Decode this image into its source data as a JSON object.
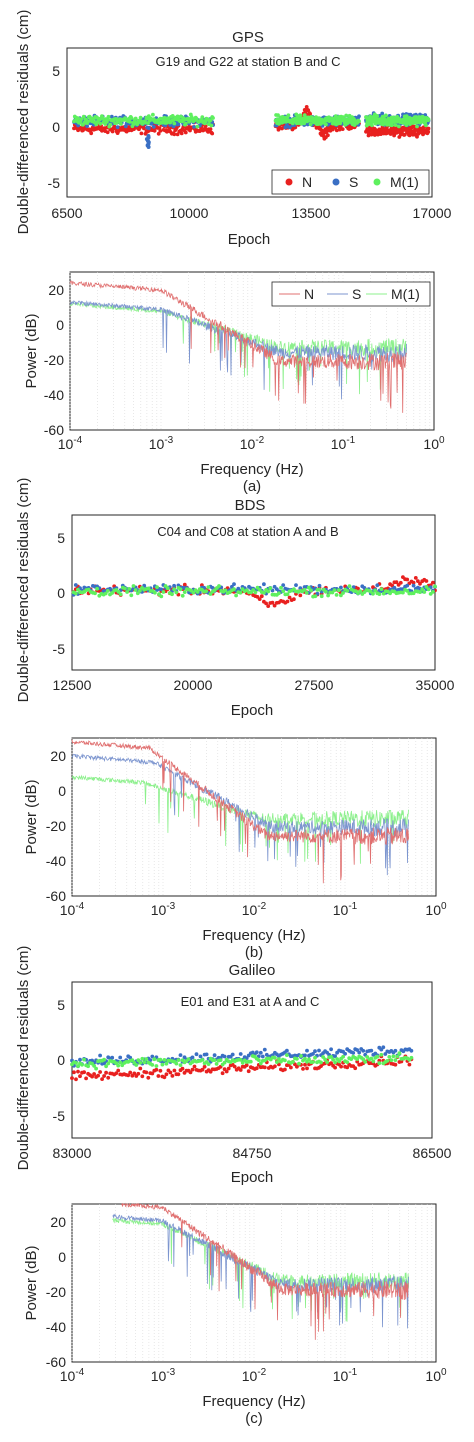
{
  "colors": {
    "N": "#e8201f",
    "S": "#3a6fc4",
    "M1": "#5ef05e",
    "N_psd": "#e07070",
    "S_psd": "#7c95cf",
    "M1_psd": "#8cf08c",
    "axis": "#262626",
    "grid": "#d9d9d9"
  },
  "chart_data": [
    {
      "type": "scatter",
      "title": "GPS",
      "annotation": "G19 and G22 at station B and C",
      "xlabel": "Epoch",
      "ylabel": "Double-differenced residuals (cm)",
      "xlim": [
        6500,
        17000
      ],
      "ylim": [
        -7,
        7
      ],
      "xticks": [
        "6500",
        "10000",
        "13500",
        "17000"
      ],
      "yticks": [
        "5",
        "0",
        "-5"
      ],
      "legend": [
        "N",
        "S",
        "M(1)"
      ],
      "legend_position": "bottom-right",
      "segments": [
        {
          "x": [
            6700,
            10700
          ],
          "N_mean": -0.6,
          "S_mean": 0.1,
          "M1_mean": 0.2,
          "spread": 0.5,
          "S_dip": {
            "x": 8850,
            "value": -2.3
          }
        },
        {
          "x": [
            12500,
            14900
          ],
          "N_mean": -0.2,
          "S_mean": 0.1,
          "M1_mean": 0.2,
          "spread": 0.5,
          "N_bumps": [
            {
              "x": 13400,
              "value": 1.1
            },
            {
              "x": 13900,
              "value": -1.2
            }
          ]
        },
        {
          "x": [
            15100,
            16900
          ],
          "N_mean": -0.8,
          "S_mean": 0.3,
          "M1_mean": 0.2,
          "spread": 0.5
        }
      ]
    },
    {
      "type": "line",
      "xscale": "log",
      "xlabel": "Frequency (Hz)",
      "ylabel": "Power (dB)",
      "xlim": [
        0.0001,
        1
      ],
      "ylim": [
        -60,
        30
      ],
      "xticks": [
        "10-4",
        "10-3",
        "10-2",
        "10-1",
        "100"
      ],
      "yticks": [
        "20",
        "0",
        "-20",
        "-40",
        "-60"
      ],
      "legend": [
        "N",
        "S",
        "M(1)"
      ],
      "legend_position": "top-right",
      "series": [
        {
          "name": "N",
          "start_dB": 24,
          "knee_hz": 0.001,
          "level_dB": -20,
          "end_hz": 0.5
        },
        {
          "name": "S",
          "start_dB": 13,
          "knee_hz": 0.001,
          "level_dB": -15,
          "end_hz": 0.5
        },
        {
          "name": "M(1)",
          "start_dB": 12,
          "knee_hz": 0.001,
          "level_dB": -12,
          "end_hz": 0.5
        }
      ],
      "caption": "(a)"
    },
    {
      "type": "scatter",
      "title": "BDS",
      "annotation": "C04 and C08 at station A and B",
      "xlabel": "Epoch",
      "ylabel": "Double-differenced residuals (cm)",
      "xlim": [
        12500,
        35000
      ],
      "ylim": [
        -7,
        7
      ],
      "xticks": [
        "12500",
        "20000",
        "27500",
        "35000"
      ],
      "yticks": [
        "5",
        "0",
        "-5"
      ],
      "segments": [
        {
          "x": [
            12600,
            35000
          ],
          "N_mean": 0.2,
          "S_mean": 0.3,
          "M1_mean": 0.1,
          "spread": 0.45,
          "N_bumps": [
            {
              "x": 25000,
              "value": -1.1
            },
            {
              "x": 33500,
              "value": 1.2
            }
          ]
        }
      ]
    },
    {
      "type": "line",
      "xscale": "log",
      "xlabel": "Frequency (Hz)",
      "ylabel": "Power (dB)",
      "xlim": [
        0.0001,
        1
      ],
      "ylim": [
        -60,
        30
      ],
      "xticks": [
        "10-4",
        "10-3",
        "10-2",
        "10-1",
        "100"
      ],
      "yticks": [
        "20",
        "0",
        "-20",
        "-40",
        "-60"
      ],
      "series": [
        {
          "name": "N",
          "start_dB": 28,
          "knee_hz": 0.0007,
          "level_dB": -25,
          "end_hz": 0.5
        },
        {
          "name": "S",
          "start_dB": 20,
          "knee_hz": 0.0008,
          "level_dB": -20,
          "end_hz": 0.5
        },
        {
          "name": "M(1)",
          "start_dB": 8,
          "knee_hz": 0.0006,
          "level_dB": -15,
          "end_hz": 0.5
        }
      ],
      "caption": "(b)"
    },
    {
      "type": "scatter",
      "title": "Galileo",
      "annotation": "E01 and E31 at A and C",
      "xlabel": "Epoch",
      "ylabel": "Double-differenced residuals (cm)",
      "xlim": [
        83000,
        86500
      ],
      "ylim": [
        -7,
        7
      ],
      "xticks": [
        "83000",
        "84750",
        "86500"
      ],
      "yticks": [
        "5",
        "0",
        "-5"
      ],
      "segments": [
        {
          "x": [
            83000,
            86300
          ],
          "N_start": -1.5,
          "N_end": 0.0,
          "S_start": -0.2,
          "S_end": 0.9,
          "M1_start": -0.3,
          "M1_end": 0.1,
          "spread": 0.45
        }
      ]
    },
    {
      "type": "line",
      "xscale": "log",
      "xlabel": "Frequency (Hz)",
      "ylabel": "Power (dB)",
      "xlim": [
        0.0001,
        1
      ],
      "ylim": [
        -60,
        30
      ],
      "xticks": [
        "10-4",
        "10-3",
        "10-2",
        "10-1",
        "100"
      ],
      "yticks": [
        "20",
        "0",
        "-20",
        "-40",
        "-60"
      ],
      "series": [
        {
          "name": "N",
          "start_hz": 0.00035,
          "start_dB": 30,
          "knee_hz": 0.001,
          "level_dB": -18,
          "end_hz": 0.5
        },
        {
          "name": "S",
          "start_hz": 0.00028,
          "start_dB": 23,
          "knee_hz": 0.001,
          "level_dB": -15,
          "end_hz": 0.5
        },
        {
          "name": "M(1)",
          "start_hz": 0.00028,
          "start_dB": 21,
          "knee_hz": 0.001,
          "level_dB": -13,
          "end_hz": 0.5
        }
      ],
      "caption": "(c)"
    }
  ]
}
